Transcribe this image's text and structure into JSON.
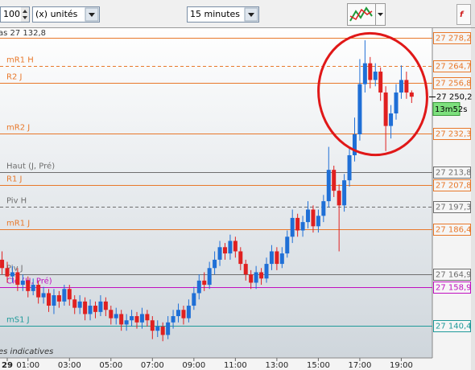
{
  "toolbar": {
    "quantity": "100",
    "unit": "(x) unités",
    "interval": "15 minutes"
  },
  "chart_data": {
    "type": "candlestick",
    "header_note": "as 27 132,8",
    "footer_note": "es indicatives",
    "countdown": "13m52s",
    "last_price": 27250.2,
    "last_price_label": "27 250,2",
    "up_color": "#1f6fd6",
    "down_color": "#e02020",
    "ylim": [
      27125,
      27282.8
    ],
    "categories": [
      null,
      "29",
      null,
      null,
      null,
      "01:00",
      null,
      null,
      null,
      null,
      null,
      null,
      null,
      "03:00",
      null,
      null,
      null,
      null,
      null,
      null,
      null,
      "05:00",
      null,
      null,
      null,
      null,
      null,
      null,
      null,
      "07:00",
      null,
      null,
      null,
      null,
      null,
      null,
      null,
      "09:00",
      null,
      null,
      null,
      null,
      null,
      null,
      null,
      "11:00",
      null,
      null,
      null,
      null,
      null,
      null,
      null,
      "13:00",
      null,
      null,
      null,
      null,
      null,
      null,
      null,
      "15:00",
      null,
      null,
      null,
      null,
      null,
      null,
      null,
      "17:00",
      null,
      null,
      null,
      null,
      null,
      null,
      null,
      "19:00",
      null,
      null
    ],
    "open": [
      27172,
      27168,
      27164,
      27166,
      27160,
      27162,
      27157,
      27160,
      27154,
      27156,
      27150,
      27155,
      27152,
      27158,
      27153,
      27149,
      27152,
      27146,
      27150,
      27147,
      27152,
      27148,
      27144,
      27146,
      27141,
      27143,
      27145,
      27142,
      27146,
      27143,
      27138,
      27140,
      27136,
      27142,
      27145,
      27148,
      27144,
      27150,
      27156,
      27162,
      27160,
      27168,
      27172,
      27178,
      27175,
      27181,
      27176,
      27170,
      27165,
      27161,
      27166,
      27163,
      27170,
      27176,
      27170,
      27175,
      27183,
      27192,
      27186,
      27190,
      27196,
      27188,
      27193,
      27200,
      27215,
      27205,
      27198,
      27210,
      27222,
      27232,
      27256,
      27266,
      27258,
      27262,
      27252,
      27236,
      27242,
      27252,
      27258,
      27252
    ],
    "high": [
      27176,
      27171,
      27169,
      27168,
      27165,
      27164,
      27163,
      27162,
      27159,
      27158,
      27158,
      27157,
      27160,
      27160,
      27155,
      27155,
      27154,
      27153,
      27152,
      27155,
      27154,
      27150,
      27149,
      27148,
      27146,
      27148,
      27147,
      27149,
      27148,
      27145,
      27143,
      27142,
      27145,
      27148,
      27151,
      27150,
      27153,
      27159,
      27165,
      27166,
      27171,
      27176,
      27181,
      27180,
      27184,
      27183,
      27178,
      27172,
      27167,
      27169,
      27168,
      27173,
      27179,
      27178,
      27178,
      27186,
      27196,
      27194,
      27193,
      27200,
      27198,
      27196,
      27203,
      27226,
      27217,
      27208,
      27213,
      27226,
      27240,
      27268,
      27277,
      27269,
      27266,
      27264,
      27255,
      27246,
      27256,
      27265,
      27262,
      27253
    ],
    "low": [
      27165,
      27161,
      27161,
      27157,
      27157,
      27154,
      27155,
      27151,
      27151,
      27147,
      27146,
      27149,
      27150,
      27150,
      27146,
      27146,
      27143,
      27143,
      27144,
      27145,
      27145,
      27141,
      27141,
      27138,
      27138,
      27140,
      27139,
      27139,
      27140,
      27134,
      27135,
      27133,
      27134,
      27139,
      27142,
      27141,
      27142,
      27148,
      27153,
      27157,
      27158,
      27165,
      27169,
      27172,
      27172,
      27173,
      27167,
      27162,
      27158,
      27158,
      27160,
      27161,
      27167,
      27167,
      27168,
      27173,
      27180,
      27183,
      27183,
      27187,
      27185,
      27185,
      27190,
      27197,
      27202,
      27176,
      27195,
      27207,
      27219,
      27229,
      27252,
      27254,
      27255,
      27248,
      27224,
      27230,
      27239,
      27249,
      27249,
      27247
    ],
    "close": [
      27168,
      27164,
      27166,
      27160,
      27162,
      27157,
      27160,
      27154,
      27156,
      27150,
      27155,
      27152,
      27158,
      27153,
      27149,
      27152,
      27146,
      27150,
      27147,
      27152,
      27148,
      27144,
      27146,
      27141,
      27143,
      27145,
      27142,
      27146,
      27143,
      27138,
      27140,
      27136,
      27142,
      27145,
      27148,
      27144,
      27150,
      27156,
      27162,
      27160,
      27168,
      27172,
      27178,
      27175,
      27181,
      27176,
      27170,
      27165,
      27161,
      27166,
      27163,
      27170,
      27176,
      27170,
      27175,
      27183,
      27192,
      27186,
      27190,
      27196,
      27188,
      27193,
      27200,
      27215,
      27205,
      27198,
      27210,
      27222,
      27232,
      27256,
      27266,
      27258,
      27262,
      27252,
      27236,
      27242,
      27252,
      27258,
      27252,
      27250
    ],
    "levels": {
      "names": [
        null,
        "mR1 H",
        "R2 J",
        "mR2 J",
        "Haut (J, Pré)",
        "R1 J",
        "Piv H",
        "mR1 J",
        "Piv J",
        "Clo (H, Pré)",
        "mS1 J"
      ],
      "values": [
        27278.2,
        27264.7,
        27256.8,
        27232.3,
        27213.8,
        27207.8,
        27197.3,
        27186.4,
        27164.9,
        27158.9,
        27140.4
      ],
      "value_labels": [
        "27 278,2",
        "27 264,7",
        "27 256,8",
        "27 232,3",
        "27 213,8",
        "27 207,8",
        "27 197,3",
        "27 186,4",
        "27 164,9",
        "27 158,9",
        "27 140,4"
      ],
      "colors": [
        "#e8782a",
        "#e8782a",
        "#e8782a",
        "#e8782a",
        "#6e6e6e",
        "#e8782a",
        "#6e6e6e",
        "#e8782a",
        "#6e6e6e",
        "#c010c0",
        "#1f9a9a"
      ],
      "dashed": [
        false,
        true,
        false,
        false,
        false,
        false,
        true,
        false,
        false,
        false,
        false
      ]
    }
  }
}
